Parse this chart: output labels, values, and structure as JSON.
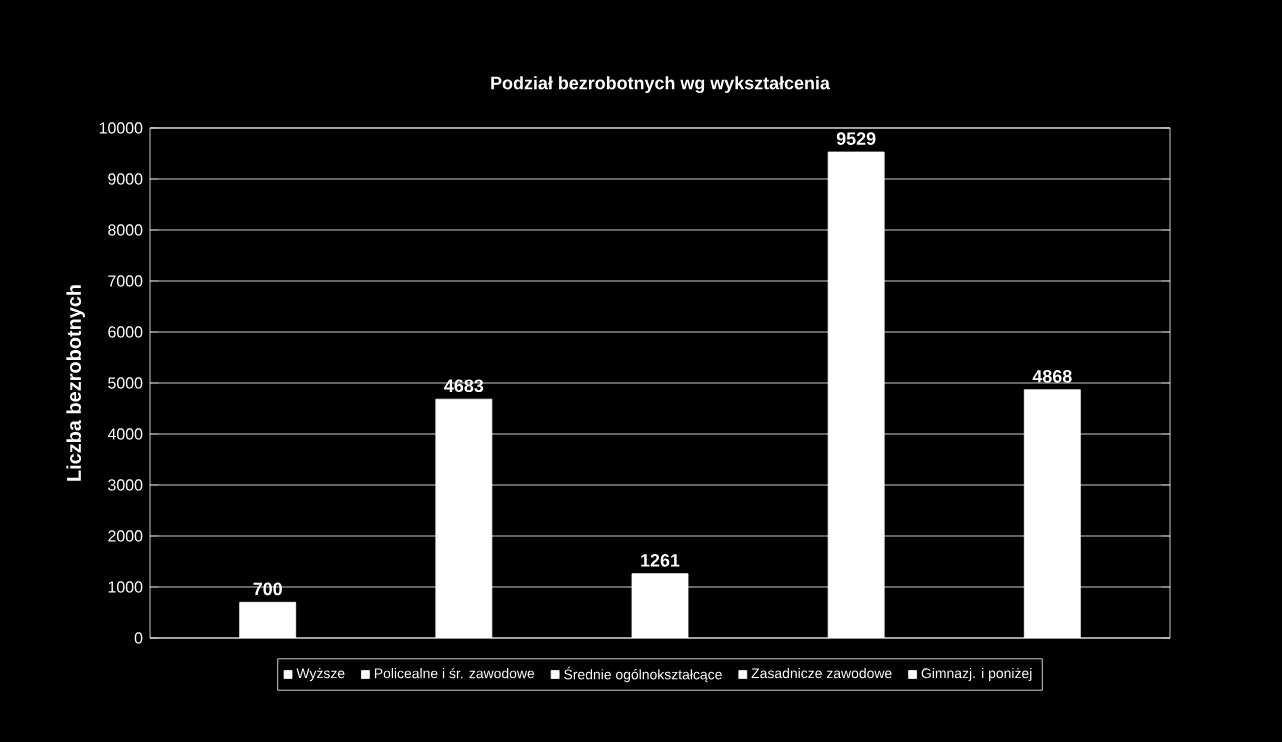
{
  "chart_data": {
    "type": "bar",
    "title": "Podział bezrobotnych wg wykształcenia",
    "ylabel": "Liczba bezrobotnych",
    "categories": [
      null,
      null,
      null,
      null,
      null
    ],
    "series": [
      {
        "name": "Wyższe",
        "color": "#ffffff",
        "values": [
          700,
          null,
          null,
          null,
          null
        ]
      },
      {
        "name": "Policealne i śr. zawodowe",
        "color": "#ffffff",
        "values": [
          null,
          4683,
          null,
          null,
          null
        ]
      },
      {
        "name": "Średnie ogólnokształcące",
        "color": "#ffffff",
        "values": [
          null,
          null,
          1261,
          null,
          null
        ]
      },
      {
        "name": "Zasadnicze zawodowe",
        "color": "#ffffff",
        "values": [
          null,
          null,
          null,
          9529,
          null
        ]
      },
      {
        "name": "Gimnazj. i poniżej",
        "color": "#ffffff",
        "values": [
          null,
          null,
          null,
          null,
          4868
        ]
      }
    ],
    "ylim": [
      0,
      10000
    ],
    "yticks": [
      0,
      1000,
      2000,
      3000,
      4000,
      5000,
      6000,
      7000,
      8000,
      9000,
      10000
    ],
    "grid": "y",
    "legend": "bottom",
    "data_labels": true
  }
}
